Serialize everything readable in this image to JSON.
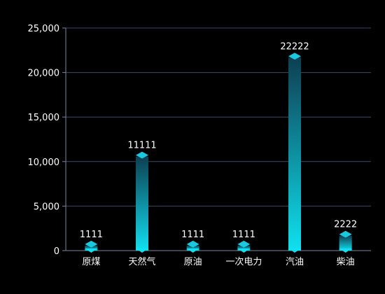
{
  "chart_data": {
    "type": "bar",
    "categories": [
      "原煤",
      "天然气",
      "原油",
      "一次电力",
      "汽油",
      "柴油"
    ],
    "values": [
      1111,
      11111,
      1111,
      1111,
      22222,
      2222
    ],
    "data_labels": [
      "1111",
      "11111",
      "1111",
      "1111",
      "22222",
      "2222"
    ],
    "y_ticks": [
      0,
      5000,
      10000,
      15000,
      20000,
      25000
    ],
    "y_tick_labels": [
      "0",
      "5,000",
      "10,000",
      "15,000",
      "20,000",
      "25,000"
    ],
    "ylim": [
      0,
      25000
    ],
    "grid": true,
    "title": "",
    "xlabel": "",
    "ylabel": ""
  },
  "colors": {
    "background": "#000000",
    "grid": "#3a4a6a",
    "axis": "#7a86a0",
    "bar_top": "#0d3f52",
    "bar_bottom": "#10e0f0",
    "cap_top": "#19c9df",
    "cap_left": "#0b8fb0",
    "cap_right": "#10b2cc",
    "text": "#ffffff"
  }
}
